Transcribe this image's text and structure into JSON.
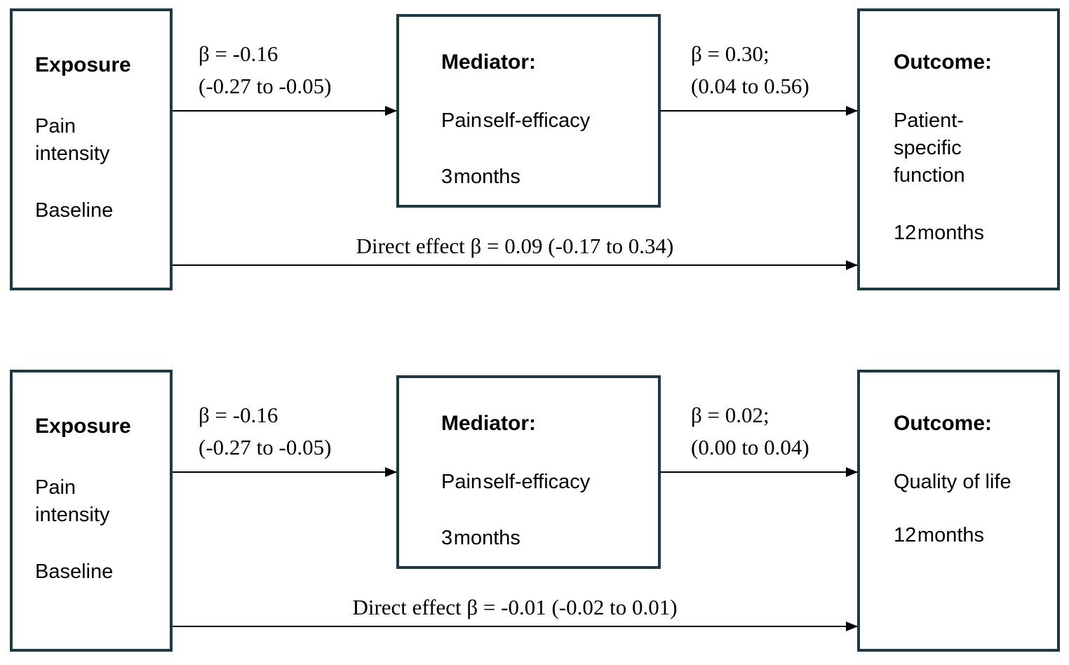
{
  "figure": {
    "type": "mediation-diagram",
    "colors": {
      "box_border": "#1c3945",
      "arrow": "#000000",
      "text": "#000000",
      "background": "#ffffff"
    },
    "panels": [
      {
        "exposure": {
          "title": "Exposure",
          "line1": "Pain",
          "line2": "intensity",
          "line3": "Baseline"
        },
        "mediator": {
          "title": "Mediator:",
          "label": "Pain self-efficacy",
          "time": "3 months"
        },
        "outcome": {
          "title": "Outcome:",
          "lines": [
            "Patient-",
            "specific",
            "function"
          ],
          "time": "12 months"
        },
        "path_a": {
          "line1": "β = -0.16",
          "line2": "(-0.27 to -0.05)"
        },
        "path_b": {
          "line1": "β = 0.30;",
          "line2": "(0.04 to 0.56)"
        },
        "direct_label": "Direct effect β = 0.09 (-0.17 to 0.34)"
      },
      {
        "exposure": {
          "title": "Exposure",
          "line1": "Pain",
          "line2": "intensity",
          "line3": "Baseline"
        },
        "mediator": {
          "title": "Mediator:",
          "label": "Pain self-efficacy",
          "time": "3 months"
        },
        "outcome": {
          "title": "Outcome:",
          "lines": [
            "Quality of life"
          ],
          "time": "12 months"
        },
        "path_a": {
          "line1": "β = -0.16",
          "line2": "(-0.27 to -0.05)"
        },
        "path_b": {
          "line1": "β = 0.02;",
          "line2": "(0.00 to 0.04)"
        },
        "direct_label": "Direct effect β = -0.01 (-0.02 to 0.01)"
      }
    ]
  }
}
